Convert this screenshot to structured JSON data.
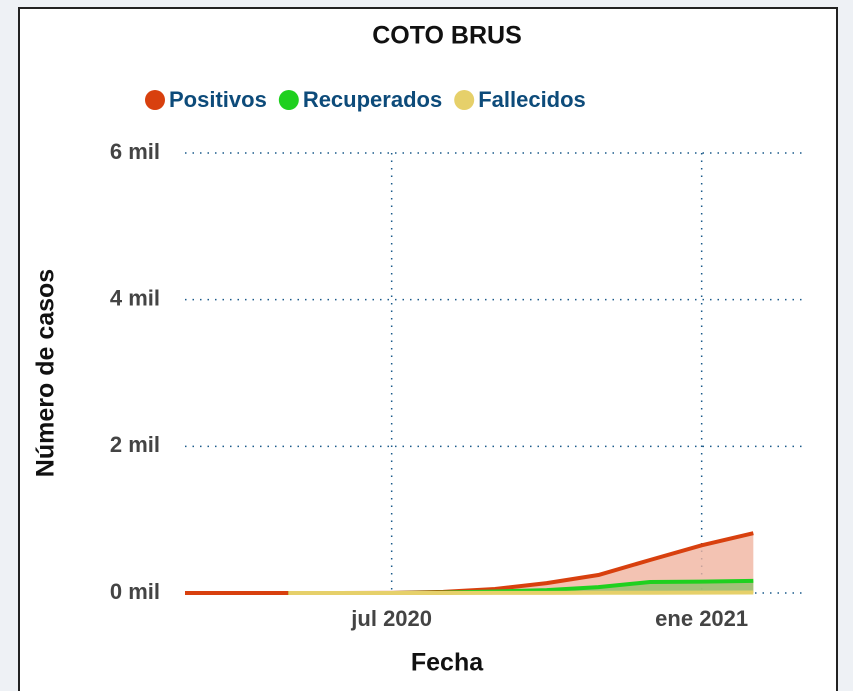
{
  "chart_data": {
    "type": "area",
    "title": "COTO BRUS",
    "x_label": "Fecha",
    "y_label": "Número de casos",
    "x": [
      "2020-03",
      "2020-04",
      "2020-05",
      "2020-06",
      "2020-07",
      "2020-08",
      "2020-09",
      "2020-10",
      "2020-11",
      "2020-12",
      "2021-01",
      "2021-02"
    ],
    "series": [
      {
        "name": "Positivos",
        "color": "#d8400e",
        "fill": "#f0b4a0",
        "values": [
          0,
          0,
          0,
          0,
          2,
          15,
          55,
          135,
          245,
          450,
          650,
          815
        ]
      },
      {
        "name": "Recuperados",
        "color": "#1fd01f",
        "fill": "#8fbf6a",
        "values": [
          null,
          null,
          0,
          0,
          0,
          5,
          20,
          40,
          80,
          150,
          155,
          165
        ]
      },
      {
        "name": "Fallecidos",
        "color": "#e6d06a",
        "fill": "#e6d06a",
        "values": [
          null,
          null,
          0,
          0,
          0,
          0,
          1,
          2,
          3,
          4,
          5,
          6
        ]
      }
    ],
    "xlim": [
      "2020-03",
      "2021-03"
    ],
    "xticks": [
      {
        "value": "2020-07",
        "label": "jul 2020"
      },
      {
        "value": "2021-01",
        "label": "ene 2021"
      }
    ],
    "ylim": [
      0,
      6000
    ],
    "yticks": [
      {
        "value": 0,
        "label": "0 mil"
      },
      {
        "value": 2000,
        "label": "2 mil"
      },
      {
        "value": 4000,
        "label": "4 mil"
      },
      {
        "value": 6000,
        "label": "6 mil"
      }
    ],
    "grid": true,
    "legend": "top"
  }
}
